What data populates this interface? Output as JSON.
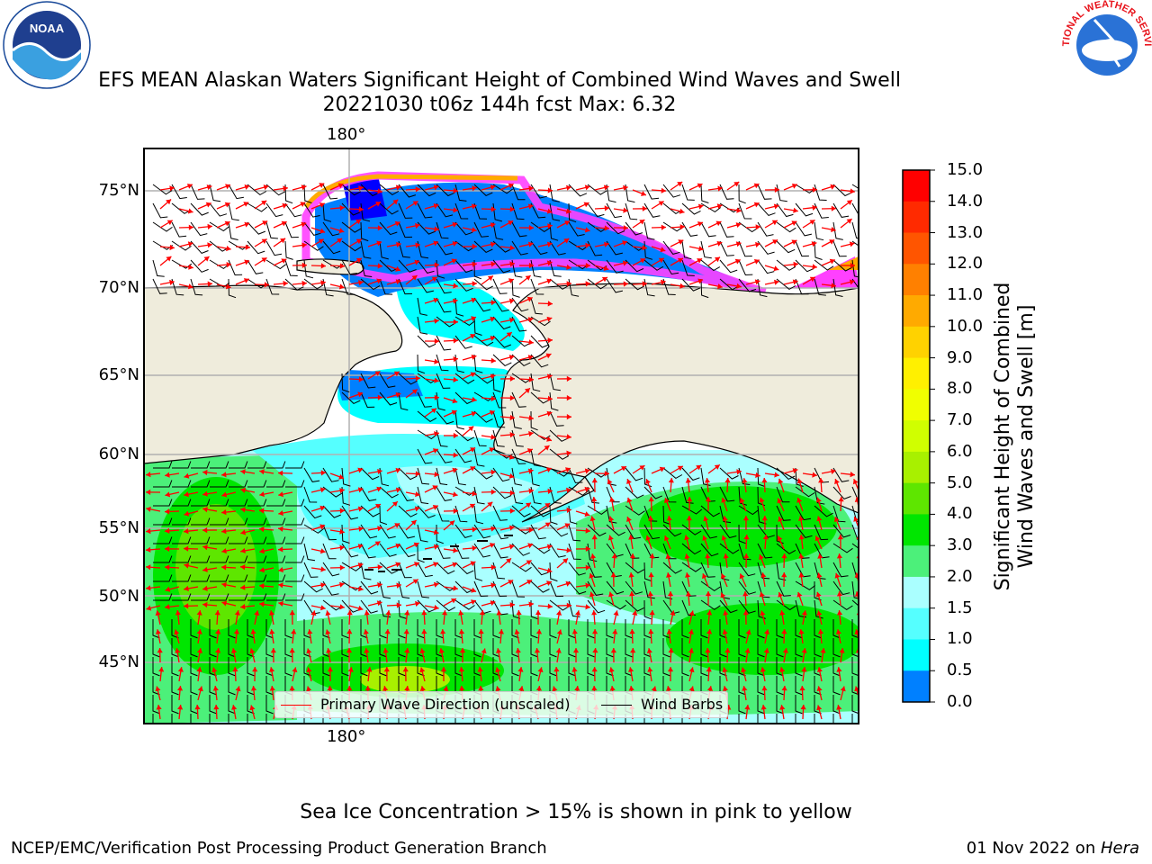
{
  "title_line1": "EFS MEAN Alaskan Waters Significant Height of Combined Wind Waves and Swell",
  "title_line2": "20221030 t06z 144h fcst   Max: 6.32",
  "map": {
    "lat_labels": [
      "75°N",
      "70°N",
      "65°N",
      "60°N",
      "55°N",
      "50°N",
      "45°N"
    ],
    "lon_label_top": "180°",
    "lon_label_bottom": "180°",
    "land_color": "#efecdc",
    "ocean_color": "#ffffff"
  },
  "colorbar": {
    "title_line1": "Significant Height of Combined",
    "title_line2": "Wind Waves and Swell [m]",
    "ticks": [
      "15.0",
      "14.0",
      "13.0",
      "12.0",
      "11.0",
      "10.0",
      "9.0",
      "8.0",
      "7.0",
      "6.0",
      "5.0",
      "4.0",
      "3.0",
      "2.0",
      "1.5",
      "1.0",
      "0.5",
      "0.0"
    ],
    "colors_top_to_bottom": [
      "#ff0000",
      "#ff2a00",
      "#ff5500",
      "#ff8000",
      "#ffaa00",
      "#ffd200",
      "#fff000",
      "#f0ff00",
      "#d0ff00",
      "#a8f000",
      "#5ee600",
      "#00e600",
      "#4cf07a",
      "#aaffff",
      "#55ffff",
      "#00ffff",
      "#0080ff",
      "#0000ff"
    ]
  },
  "legend": {
    "wave_label": "Primary Wave Direction (unscaled)",
    "wind_label": "Wind Barbs",
    "wave_color": "#ff0000",
    "wind_color": "#000000"
  },
  "ice_note": "Sea Ice Concentration > 15% is shown in pink to yellow",
  "credit": "NCEP/EMC/Verification Post Processing Product Generation Branch",
  "date_prefix": "01 Nov 2022 on ",
  "date_system": "Hera",
  "logos": {
    "noaa_text": "NOAA",
    "nws_text": "NATIONAL WEATHER SERVICE"
  }
}
